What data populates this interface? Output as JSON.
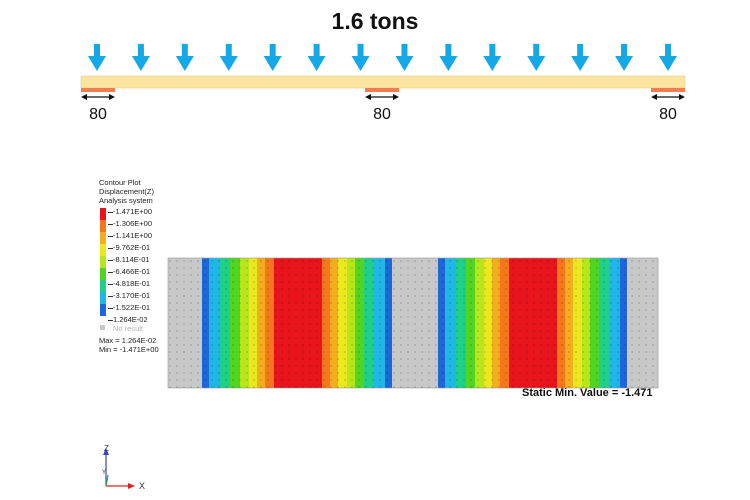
{
  "load_title": "1.6 tons",
  "support_labels": [
    "80",
    "80",
    "80"
  ],
  "load_arrow_count": 14,
  "colors": {
    "arrow": "#14a9e6",
    "beam": "#fbe5a0",
    "support": "#ef7c52",
    "no_result": "#c8c8c8"
  },
  "legend": {
    "title_lines": [
      "Contour Plot",
      "Displacement(Z)",
      "Analysis system"
    ],
    "values": [
      "-1.471E+00",
      "-1.306E+00",
      "-1.141E+00",
      "-9.762E-01",
      "-8.114E-01",
      "-6.466E-01",
      "-4.818E-01",
      "-3.170E-01",
      "-1.522E-01",
      "1.264E-02"
    ],
    "band_colors": [
      "#e8141c",
      "#f5761b",
      "#f3ad1f",
      "#ece820",
      "#b7e61d",
      "#52d423",
      "#1fcf8a",
      "#1fb6e8",
      "#1f66d8"
    ],
    "no_result_label": "No result",
    "max_text": "Max = 1.264E-02",
    "min_text": "Min = -1.471E+00"
  },
  "contour_bands": [
    "#c8c8c8",
    "#1f66d8",
    "#1fb6e8",
    "#1fcf8a",
    "#52d423",
    "#b7e61d",
    "#ece820",
    "#f3ad1f",
    "#f5761b",
    "#e8141c",
    "#f5761b",
    "#f3ad1f",
    "#ece820",
    "#b7e61d",
    "#52d423",
    "#1fcf8a",
    "#1fb6e8",
    "#1f66d8",
    "#c8c8c8",
    "#1f66d8",
    "#1fb6e8",
    "#1fcf8a",
    "#52d423",
    "#b7e61d",
    "#ece820",
    "#f3ad1f",
    "#f5761b",
    "#e8141c",
    "#f5761b",
    "#f3ad1f",
    "#ece820",
    "#b7e61d",
    "#52d423",
    "#1fcf8a",
    "#1fb6e8",
    "#1f66d8",
    "#c8c8c8"
  ],
  "min_value_text": "Static Min. Value =  -1.471",
  "axis_labels": {
    "z": "Z",
    "x": "X",
    "y": "Y"
  }
}
